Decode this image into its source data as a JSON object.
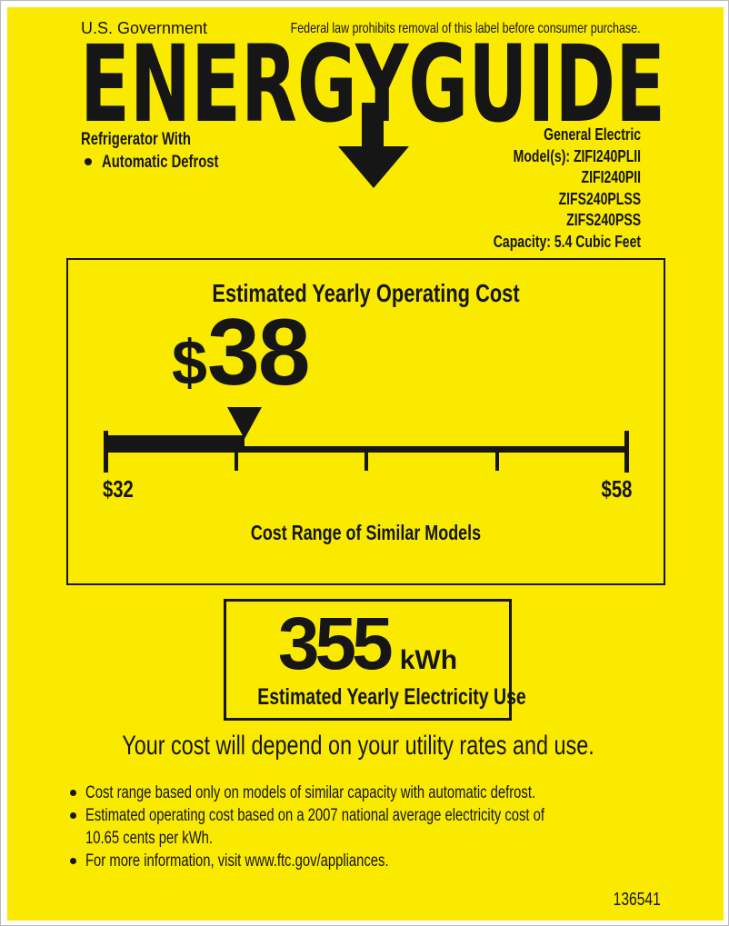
{
  "header": {
    "agency": "U.S. Government",
    "notice": "Federal law prohibits removal of this label before consumer purchase.",
    "logo_text": "ENERGYGUIDE"
  },
  "product": {
    "category": "Refrigerator With",
    "feature": "Automatic Defrost",
    "manufacturer": "General Electric",
    "model_lines": [
      "Model(s): ZIFI240PLII",
      "ZIFI240PII",
      "ZIFS240PLSS",
      "ZIFS240PSS"
    ],
    "capacity": "Capacity: 5.4 Cubic Feet"
  },
  "operating_cost": {
    "title": "Estimated Yearly Operating Cost",
    "currency_symbol": "$",
    "value": "38",
    "scale": {
      "min": 32,
      "max": 58,
      "marker": 38,
      "min_label": "$32",
      "max_label": "$58"
    },
    "caption": "Cost Range of Similar Models"
  },
  "electricity_use": {
    "value": "355",
    "unit": "kWh",
    "caption": "Estimated Yearly Electricity Use"
  },
  "footer": {
    "headline": "Your cost will depend on your utility rates and use.",
    "bullets": [
      "Cost range based only on models of similar capacity with automatic defrost.",
      "Estimated operating cost based on a 2007 national average electricity cost of\n10.65 cents per kWh.",
      "For more information, visit www.ftc.gov/appliances."
    ],
    "label_number": "136541"
  },
  "colors": {
    "label_yellow": "#F9EA00",
    "ink": "#161616"
  }
}
